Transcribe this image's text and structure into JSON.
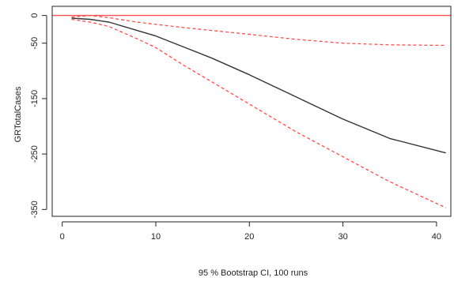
{
  "chart_data": {
    "type": "line",
    "title": "",
    "xlabel": "95 % Bootstrap CI,  100 runs",
    "ylabel": "GRTotalCases",
    "xlim": [
      0,
      42
    ],
    "ylim": [
      -355,
      5
    ],
    "x_ticks": [
      0,
      10,
      20,
      30,
      40
    ],
    "y_ticks": [
      0,
      -50,
      -150,
      -250,
      -350
    ],
    "reference_line": {
      "y": 0,
      "color": "#ff4d4d"
    },
    "series": [
      {
        "style": "solid",
        "color": "#333333",
        "x": [
          1,
          3,
          5,
          8,
          10,
          13,
          16,
          20,
          25,
          30,
          35,
          41
        ],
        "y": [
          -5,
          -7,
          -12,
          -27,
          -37,
          -57,
          -77,
          -107,
          -147,
          -187,
          -222,
          -248
        ]
      },
      {
        "style": "dashed",
        "color": "#ff4d4d",
        "x": [
          1,
          3,
          5,
          8,
          10,
          13,
          16,
          20,
          25,
          30,
          35,
          41
        ],
        "y": [
          -3,
          0,
          -4,
          -12,
          -16,
          -22,
          -27,
          -34,
          -43,
          -50,
          -53,
          -54
        ]
      },
      {
        "style": "dashed",
        "color": "#ff4d4d",
        "x": [
          1,
          3,
          5,
          8,
          10,
          13,
          16,
          20,
          25,
          30,
          35,
          41
        ],
        "y": [
          -7,
          -12,
          -20,
          -42,
          -58,
          -90,
          -120,
          -160,
          -210,
          -255,
          -300,
          -347
        ]
      }
    ]
  }
}
